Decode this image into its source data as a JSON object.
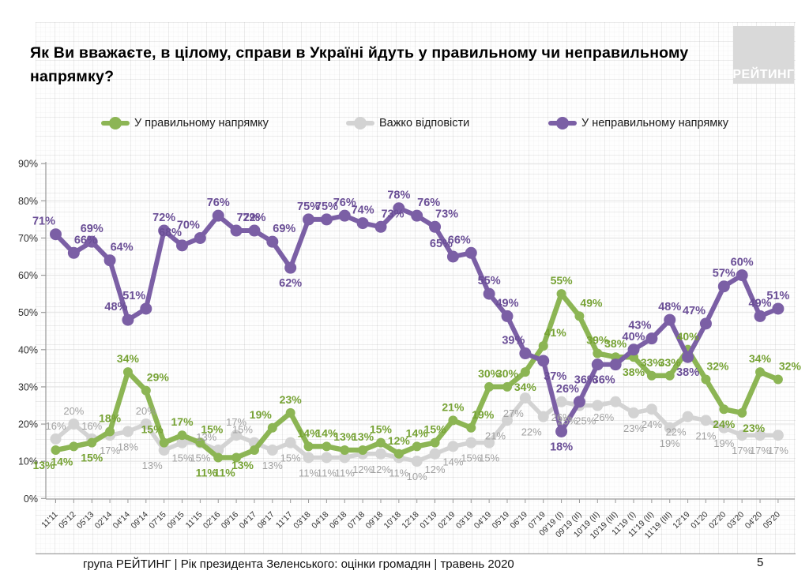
{
  "page": {
    "title": "Як Ви вважаєте, в цілому, справи в Україні йдуть у правильному чи неправильному напрямку?",
    "logo_text": "РЕЙТИНГ",
    "footer": "група РЕЙТИНГ |  Рік президента Зеленського: оцінки громадян | травень 2020",
    "page_number": "5"
  },
  "legend": [
    {
      "label": "У правильному напрямку",
      "color": "#8CB554"
    },
    {
      "label": "Важко відповісти",
      "color": "#D3D3D3"
    },
    {
      "label": "У неправильному напрямку",
      "color": "#7B5FA5"
    }
  ],
  "chart_data": {
    "type": "line",
    "title": "Як Ви вважаєте, в цілому, справи в Україні йдуть у правильному чи неправильному напрямку?",
    "categories": [
      "11'11",
      "05'12",
      "05'13",
      "02'14",
      "04'14",
      "09'14",
      "07'15",
      "09'15",
      "11'15",
      "02'16",
      "09'16",
      "04'17",
      "08'17",
      "11'17",
      "03'18",
      "04'18",
      "06'18",
      "07'18",
      "09'18",
      "10'18",
      "12'18",
      "01'19",
      "02'19",
      "03'19",
      "04'19",
      "05'19",
      "06'19",
      "07'19",
      "09'19 (I)",
      "09'19 (II)",
      "10'19 (II)",
      "10'19 (III)",
      "11'19 (I)",
      "11'19 (II)",
      "11'19 (III)",
      "12'19",
      "01'20",
      "02'20",
      "03'20",
      "04'20",
      "05'20"
    ],
    "series": [
      {
        "name": "У правильному напрямку",
        "color": "#8CB554",
        "label_color": "#76A234",
        "values": [
          13,
          14,
          15,
          18,
          34,
          29,
          15,
          17,
          15,
          11,
          11,
          13,
          19,
          23,
          14,
          14,
          13,
          13,
          15,
          12,
          14,
          15,
          21,
          19,
          30,
          30,
          34,
          41,
          55,
          49,
          39,
          38,
          38,
          33,
          33,
          40,
          32,
          24,
          23,
          34,
          32
        ]
      },
      {
        "name": "Важко відповісти",
        "color": "#D3D3D3",
        "label_color": "#A0A0A0",
        "values": [
          16,
          20,
          16,
          17,
          18,
          20,
          13,
          15,
          15,
          13,
          17,
          15,
          13,
          15,
          11,
          11,
          11,
          12,
          12,
          11,
          10,
          12,
          14,
          15,
          15,
          21,
          27,
          22,
          26,
          25,
          25,
          26,
          23,
          24,
          19,
          22,
          21,
          19,
          17,
          17,
          17
        ]
      },
      {
        "name": "У неправильному напрямку",
        "color": "#7B5FA5",
        "label_color": "#6A4E96",
        "values": [
          71,
          66,
          69,
          64,
          48,
          51,
          72,
          68,
          70,
          76,
          72,
          72,
          69,
          62,
          75,
          75,
          76,
          74,
          73,
          78,
          76,
          73,
          65,
          66,
          55,
          49,
          39,
          37,
          18,
          26,
          36,
          36,
          40,
          43,
          48,
          38,
          47,
          57,
          60,
          49,
          51
        ]
      }
    ],
    "ylim": [
      0,
      90
    ],
    "ytick_step": 10,
    "ytick_labels": [
      "0%",
      "10%",
      "20%",
      "30%",
      "40%",
      "50%",
      "60%",
      "70%",
      "80%",
      "90%"
    ],
    "grid": true,
    "legend_position": "top",
    "value_suffix": "%"
  }
}
